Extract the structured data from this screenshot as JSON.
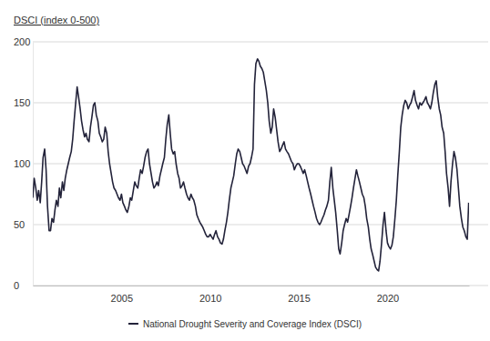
{
  "chart_data": {
    "type": "line",
    "y_label": "DSCI (index 0-500)",
    "x": [
      2000.0,
      2000.08,
      2000.17,
      2000.25,
      2000.33,
      2000.42,
      2000.5,
      2000.58,
      2000.67,
      2000.75,
      2000.83,
      2000.92,
      2001.0,
      2001.08,
      2001.17,
      2001.25,
      2001.33,
      2001.42,
      2001.5,
      2001.58,
      2001.67,
      2001.75,
      2001.83,
      2001.92,
      2002.0,
      2002.08,
      2002.17,
      2002.25,
      2002.33,
      2002.42,
      2002.5,
      2002.58,
      2002.67,
      2002.75,
      2002.83,
      2002.92,
      2003.0,
      2003.08,
      2003.17,
      2003.25,
      2003.33,
      2003.42,
      2003.5,
      2003.58,
      2003.67,
      2003.75,
      2003.83,
      2003.92,
      2004.0,
      2004.08,
      2004.17,
      2004.25,
      2004.33,
      2004.42,
      2004.5,
      2004.58,
      2004.67,
      2004.75,
      2004.83,
      2004.92,
      2005.0,
      2005.08,
      2005.17,
      2005.25,
      2005.33,
      2005.42,
      2005.5,
      2005.58,
      2005.67,
      2005.75,
      2005.83,
      2005.92,
      2006.0,
      2006.08,
      2006.17,
      2006.25,
      2006.33,
      2006.42,
      2006.5,
      2006.58,
      2006.67,
      2006.75,
      2006.83,
      2006.92,
      2007.0,
      2007.08,
      2007.17,
      2007.25,
      2007.33,
      2007.42,
      2007.5,
      2007.58,
      2007.67,
      2007.75,
      2007.83,
      2007.92,
      2008.0,
      2008.08,
      2008.17,
      2008.25,
      2008.33,
      2008.42,
      2008.5,
      2008.58,
      2008.67,
      2008.75,
      2008.83,
      2008.92,
      2009.0,
      2009.08,
      2009.17,
      2009.25,
      2009.33,
      2009.42,
      2009.5,
      2009.58,
      2009.67,
      2009.75,
      2009.83,
      2009.92,
      2010.0,
      2010.08,
      2010.17,
      2010.25,
      2010.33,
      2010.42,
      2010.5,
      2010.58,
      2010.67,
      2010.75,
      2010.83,
      2010.92,
      2011.0,
      2011.08,
      2011.17,
      2011.25,
      2011.33,
      2011.42,
      2011.5,
      2011.58,
      2011.67,
      2011.75,
      2011.83,
      2011.92,
      2012.0,
      2012.08,
      2012.17,
      2012.25,
      2012.33,
      2012.42,
      2012.5,
      2012.58,
      2012.67,
      2012.75,
      2012.83,
      2012.92,
      2013.0,
      2013.08,
      2013.17,
      2013.25,
      2013.33,
      2013.42,
      2013.5,
      2013.58,
      2013.67,
      2013.75,
      2013.83,
      2013.92,
      2014.0,
      2014.08,
      2014.17,
      2014.25,
      2014.33,
      2014.42,
      2014.5,
      2014.58,
      2014.67,
      2014.75,
      2014.83,
      2014.92,
      2015.0,
      2015.08,
      2015.17,
      2015.25,
      2015.33,
      2015.42,
      2015.5,
      2015.58,
      2015.67,
      2015.75,
      2015.83,
      2015.92,
      2016.0,
      2016.08,
      2016.17,
      2016.25,
      2016.33,
      2016.42,
      2016.5,
      2016.58,
      2016.67,
      2016.75,
      2016.83,
      2016.92,
      2017.0,
      2017.08,
      2017.17,
      2017.25,
      2017.33,
      2017.42,
      2017.5,
      2017.58,
      2017.67,
      2017.75,
      2017.83,
      2017.92,
      2018.0,
      2018.08,
      2018.17,
      2018.25,
      2018.33,
      2018.42,
      2018.5,
      2018.58,
      2018.67,
      2018.75,
      2018.83,
      2018.92,
      2019.0,
      2019.08,
      2019.17,
      2019.25,
      2019.33,
      2019.42,
      2019.5,
      2019.58,
      2019.67,
      2019.75,
      2019.83,
      2019.92,
      2020.0,
      2020.08,
      2020.17,
      2020.25,
      2020.33,
      2020.42,
      2020.5,
      2020.58,
      2020.67,
      2020.75,
      2020.83,
      2020.92,
      2021.0,
      2021.08,
      2021.17,
      2021.25,
      2021.33,
      2021.42,
      2021.5,
      2021.58,
      2021.67,
      2021.75,
      2021.83,
      2021.92,
      2022.0,
      2022.08,
      2022.17,
      2022.25,
      2022.33,
      2022.42,
      2022.5,
      2022.58,
      2022.67,
      2022.75,
      2022.83,
      2022.92,
      2023.0,
      2023.08,
      2023.17,
      2023.25,
      2023.33,
      2023.42,
      2023.5,
      2023.58,
      2023.67,
      2023.75,
      2023.83,
      2023.92,
      2024.0,
      2024.08,
      2024.17,
      2024.25,
      2024.33,
      2024.42,
      2024.5,
      2024.58
    ],
    "series": [
      {
        "name": "National Drought Severity and Coverage Index (DSCI)",
        "color": "#23233a",
        "values": [
          72,
          88,
          80,
          70,
          78,
          68,
          85,
          105,
          112,
          95,
          65,
          45,
          45,
          55,
          52,
          62,
          70,
          65,
          80,
          72,
          85,
          78,
          88,
          95,
          100,
          105,
          110,
          120,
          135,
          150,
          163,
          155,
          145,
          135,
          128,
          122,
          125,
          120,
          118,
          130,
          138,
          148,
          150,
          140,
          135,
          125,
          122,
          118,
          120,
          130,
          125,
          110,
          100,
          92,
          85,
          80,
          78,
          75,
          72,
          70,
          75,
          68,
          65,
          62,
          60,
          65,
          72,
          70,
          78,
          85,
          82,
          80,
          88,
          95,
          92,
          98,
          105,
          110,
          112,
          100,
          92,
          85,
          80,
          82,
          85,
          82,
          90,
          95,
          100,
          105,
          120,
          132,
          140,
          125,
          112,
          108,
          110,
          100,
          92,
          88,
          80,
          82,
          85,
          80,
          75,
          72,
          70,
          75,
          72,
          70,
          65,
          58,
          55,
          52,
          50,
          48,
          45,
          42,
          40,
          40,
          42,
          40,
          38,
          42,
          45,
          40,
          38,
          35,
          34,
          38,
          45,
          52,
          60,
          70,
          80,
          85,
          90,
          100,
          108,
          112,
          110,
          105,
          100,
          98,
          95,
          92,
          98,
          100,
          105,
          112,
          165,
          182,
          186,
          184,
          180,
          178,
          175,
          168,
          160,
          150,
          135,
          125,
          130,
          145,
          138,
          128,
          118,
          110,
          112,
          115,
          118,
          112,
          110,
          108,
          105,
          102,
          100,
          95,
          98,
          100,
          100,
          98,
          95,
          92,
          95,
          90,
          85,
          80,
          75,
          70,
          65,
          60,
          55,
          52,
          50,
          52,
          55,
          58,
          62,
          65,
          70,
          85,
          97,
          80,
          70,
          60,
          45,
          30,
          26,
          35,
          45,
          50,
          55,
          52,
          58,
          65,
          72,
          80,
          88,
          95,
          90,
          85,
          80,
          75,
          72,
          65,
          55,
          48,
          38,
          30,
          25,
          20,
          15,
          13,
          12,
          20,
          35,
          50,
          60,
          45,
          35,
          32,
          30,
          33,
          40,
          55,
          70,
          90,
          110,
          130,
          140,
          148,
          152,
          150,
          145,
          148,
          150,
          155,
          160,
          152,
          148,
          145,
          150,
          148,
          150,
          152,
          155,
          150,
          148,
          145,
          150,
          158,
          165,
          168,
          155,
          145,
          140,
          130,
          125,
          110,
          92,
          80,
          65,
          85,
          100,
          110,
          105,
          95,
          80,
          65,
          55,
          48,
          45,
          40,
          38,
          68
        ]
      }
    ],
    "xlim": [
      2000,
      2024.6
    ],
    "xticks": [
      2005,
      2010,
      2015,
      2020
    ],
    "ylim": [
      0,
      200
    ],
    "yticks": [
      0,
      50,
      100,
      150,
      200
    ],
    "grid": true,
    "legend": "bottom"
  }
}
